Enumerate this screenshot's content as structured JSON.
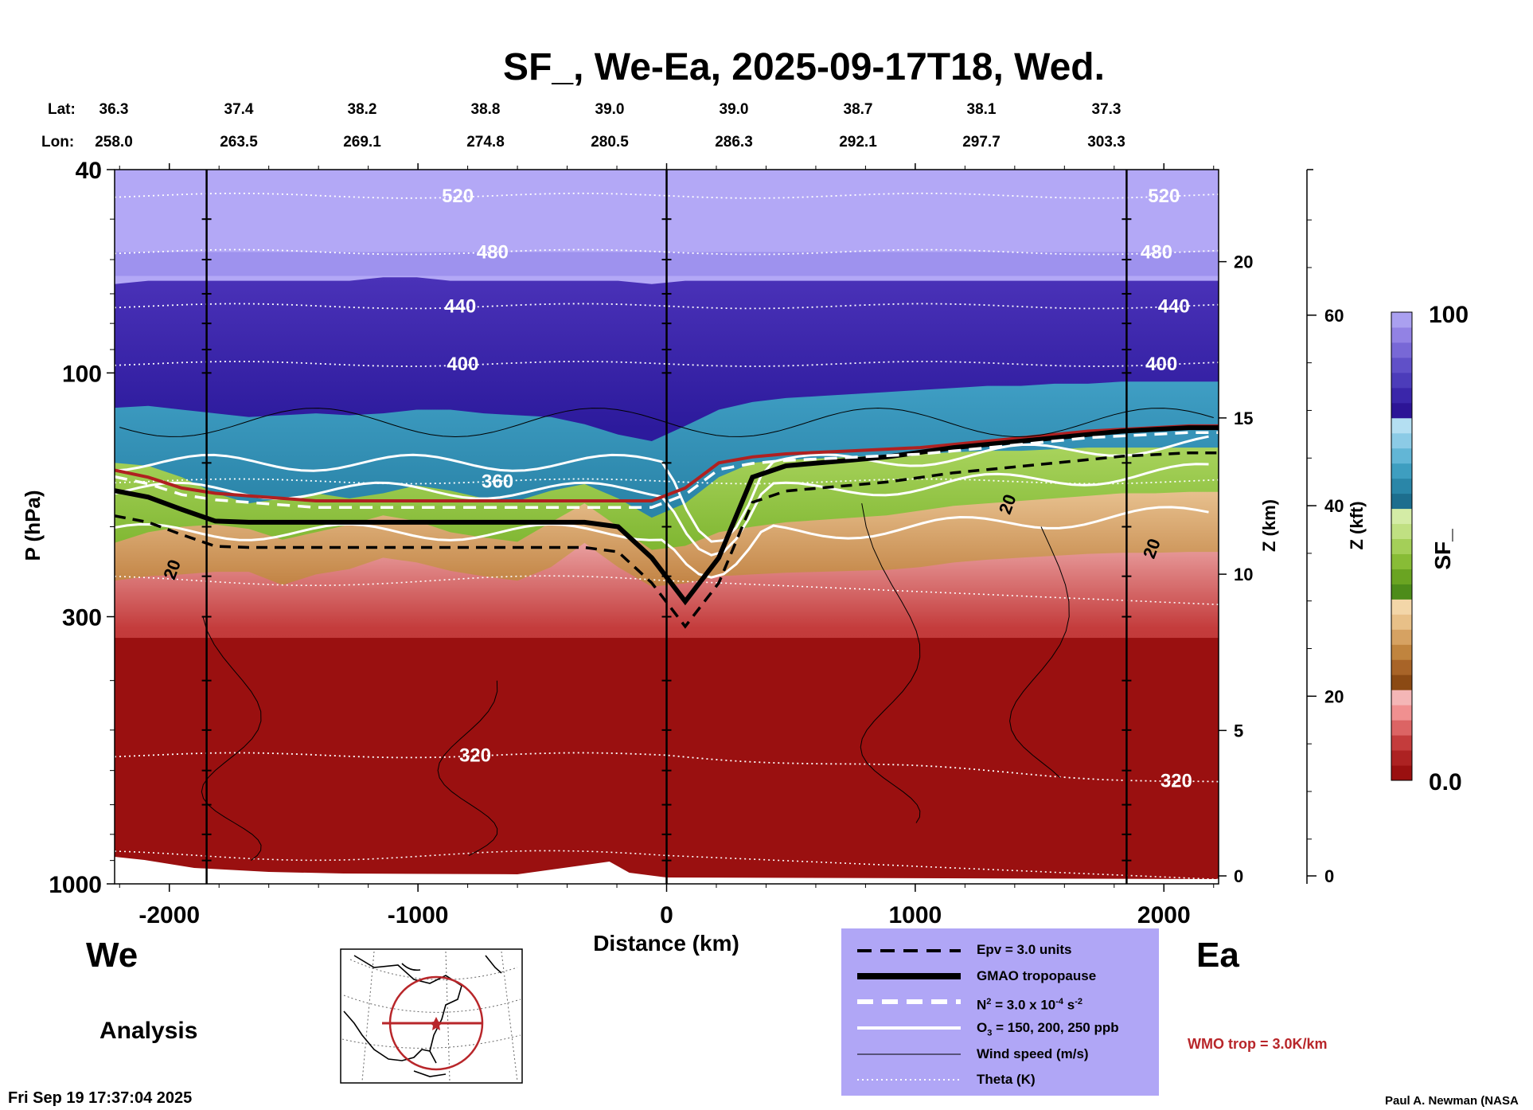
{
  "title": "SF_, We-Ea, 2025-09-17T18, Wed.",
  "location_header": {
    "lat_label": "Lat:",
    "lon_label": "Lon:",
    "lat_values": [
      "36.3",
      "37.4",
      "38.2",
      "38.8",
      "39.0",
      "39.0",
      "38.7",
      "38.1",
      "37.3"
    ],
    "lon_values": [
      "258.0",
      "263.5",
      "269.1",
      "274.8",
      "280.5",
      "286.3",
      "292.1",
      "297.7",
      "303.3"
    ]
  },
  "axes": {
    "y_left_label": "P (hPa)",
    "y_left_ticks": [
      "40",
      "100",
      "300",
      "1000"
    ],
    "x_label": "Distance (km)",
    "x_ticks": [
      "-2000",
      "-1000",
      "0",
      "1000",
      "2000"
    ],
    "z_km_label": "Z (km)",
    "z_km_ticks": [
      "20",
      "15",
      "10",
      "5",
      "0"
    ],
    "z_kft_label": "Z (kft)",
    "z_kft_ticks": [
      "60",
      "40",
      "20",
      "0"
    ]
  },
  "colorbar": {
    "label": "SF_",
    "max_label": "100",
    "min_label": "0.0",
    "colors": [
      "#9a1010",
      "#ad2222",
      "#c43c3c",
      "#dc6464",
      "#f09090",
      "#f4b6b6",
      "#8b4a14",
      "#a86428",
      "#c0843e",
      "#d6a262",
      "#e8c088",
      "#f3d6a8",
      "#4d8c1a",
      "#6aa422",
      "#88bc36",
      "#a4cf58",
      "#c0e082",
      "#d4eca6",
      "#1d6e8e",
      "#2a86a8",
      "#3e9ec0",
      "#62b6d6",
      "#8ccbe6",
      "#b4dff2",
      "#2c1496",
      "#3a26aa",
      "#4c3cba",
      "#6050c8",
      "#7868d6",
      "#9282e4",
      "#aaa0f0"
    ]
  },
  "chart_data": {
    "type": "heatmap",
    "title": "SF_, We-Ea, 2025-09-17T18, Wed.",
    "xlabel": "Distance (km)",
    "ylabel": "P (hPa)",
    "xlim": [
      -2220,
      2220
    ],
    "ylim_hpa": [
      1000,
      40
    ],
    "y_scale": "log",
    "colorbar_range": [
      0.0,
      100
    ],
    "section_markers_km": [
      -1850,
      0,
      1850
    ],
    "field_layers": [
      {
        "name": "SF_ low (red)",
        "top_hpa": [
          255,
          250,
          248,
          245,
          245,
          260,
          248,
          242,
          230,
          235,
          244,
          250,
          255,
          240,
          215,
          240,
          262,
          258,
          250,
          248,
          246,
          245,
          244,
          243,
          240,
          235,
          232,
          230,
          228,
          226,
          225,
          225,
          224,
          224
        ]
      },
      {
        "name": "SF_ brown",
        "top_hpa": [
          215,
          205,
          200,
          198,
          202,
          212,
          205,
          198,
          190,
          195,
          205,
          210,
          214,
          196,
          180,
          200,
          222,
          218,
          205,
          200,
          196,
          194,
          192,
          190,
          186,
          182,
          180,
          178,
          176,
          174,
          172,
          172,
          171,
          171
        ]
      },
      {
        "name": "SF_ green",
        "top_hpa": [
          150,
          152,
          160,
          172,
          180,
          176,
          172,
          176,
          172,
          166,
          170,
          176,
          178,
          170,
          165,
          176,
          192,
          180,
          160,
          150,
          148,
          147,
          146,
          145,
          144,
          143,
          142,
          142,
          141,
          140,
          140,
          140,
          140,
          140
        ]
      },
      {
        "name": "SF_ blue",
        "top_hpa": [
          117,
          116,
          118,
          120,
          122,
          121,
          120,
          121,
          120,
          118,
          118,
          120,
          121,
          122,
          126,
          132,
          136,
          127,
          118,
          114,
          112,
          111,
          110,
          109,
          108,
          107,
          106,
          106,
          105,
          105,
          104,
          104,
          104,
          104
        ]
      },
      {
        "name": "SF_ dark violet",
        "top_hpa": [
          67,
          66,
          66,
          66,
          66,
          66,
          66,
          66,
          65,
          65,
          66,
          66,
          66,
          66,
          66,
          66,
          67,
          66,
          66,
          66,
          66,
          66,
          66,
          66,
          66,
          66,
          66,
          66,
          66,
          66,
          66,
          66,
          66,
          66
        ]
      }
    ],
    "layer_x_km": [
      -2220,
      -2085,
      -1950,
      -1815,
      -1680,
      -1545,
      -1410,
      -1275,
      -1140,
      -1005,
      -870,
      -735,
      -600,
      -465,
      -330,
      -195,
      -60,
      75,
      210,
      345,
      480,
      615,
      750,
      885,
      1020,
      1155,
      1290,
      1425,
      1560,
      1695,
      1830,
      1965,
      2100,
      2220
    ],
    "theta_contours": [
      {
        "value": "520",
        "p_hpa": 45,
        "labels_km": [
          -840,
          2000
        ]
      },
      {
        "value": "480",
        "p_hpa": 58,
        "labels_km": [
          -700,
          1970
        ]
      },
      {
        "value": "440",
        "p_hpa": 74,
        "labels_km": [
          -830,
          2040
        ]
      },
      {
        "value": "400",
        "p_hpa": 96,
        "labels_km": [
          -820,
          1990
        ]
      },
      {
        "value": "360",
        "p_hpa": 163,
        "labels_km": [
          -680
        ]
      },
      {
        "value": "320",
        "p_hpa": 560,
        "labels_km": [
          -770,
          2050
        ]
      }
    ],
    "wind_contour_labels": [
      "20",
      "20",
      "20"
    ],
    "gmao_tropopause_hpa": [
      170,
      175,
      185,
      195,
      196,
      196,
      196,
      196,
      196,
      196,
      196,
      196,
      196,
      196,
      196,
      200,
      230,
      280,
      230,
      160,
      152,
      150,
      148,
      146,
      143,
      140,
      138,
      136,
      134,
      132,
      130,
      129,
      128,
      128
    ],
    "wmo_tropopause_hpa": [
      155,
      160,
      168,
      172,
      174,
      176,
      178,
      178,
      178,
      178,
      178,
      178,
      178,
      178,
      178,
      178,
      178,
      168,
      150,
      146,
      144,
      143,
      142,
      141,
      140,
      138,
      136,
      134,
      132,
      130,
      129,
      128,
      127,
      127
    ]
  },
  "direction_labels": {
    "west": "We",
    "east": "Ea"
  },
  "analysis_label": "Analysis",
  "legend": {
    "items": [
      {
        "label": "Epv = 3.0 units",
        "style": "dashed-black"
      },
      {
        "label": "GMAO tropopause",
        "style": "thick-black"
      },
      {
        "label_main": "N",
        "label_sup": "2",
        "label_rest": " = 3.0 x 10",
        "label_sup2": "-4",
        "label_tail": " s",
        "label_sup3": "-2",
        "style": "dashed-white"
      },
      {
        "label_main": "O",
        "label_sub": "3",
        "label_rest": " = 150, 200, 250 ppb",
        "style": "solid-white"
      },
      {
        "label": "Wind speed (m/s)",
        "style": "thin-black"
      },
      {
        "label": "Theta (K)",
        "style": "dotted-white"
      }
    ]
  },
  "wmo_label": "WMO trop = 3.0K/km",
  "timestamp": "Fri Sep 19 17:37:04 2025",
  "credit": "Paul A. Newman (NASA"
}
